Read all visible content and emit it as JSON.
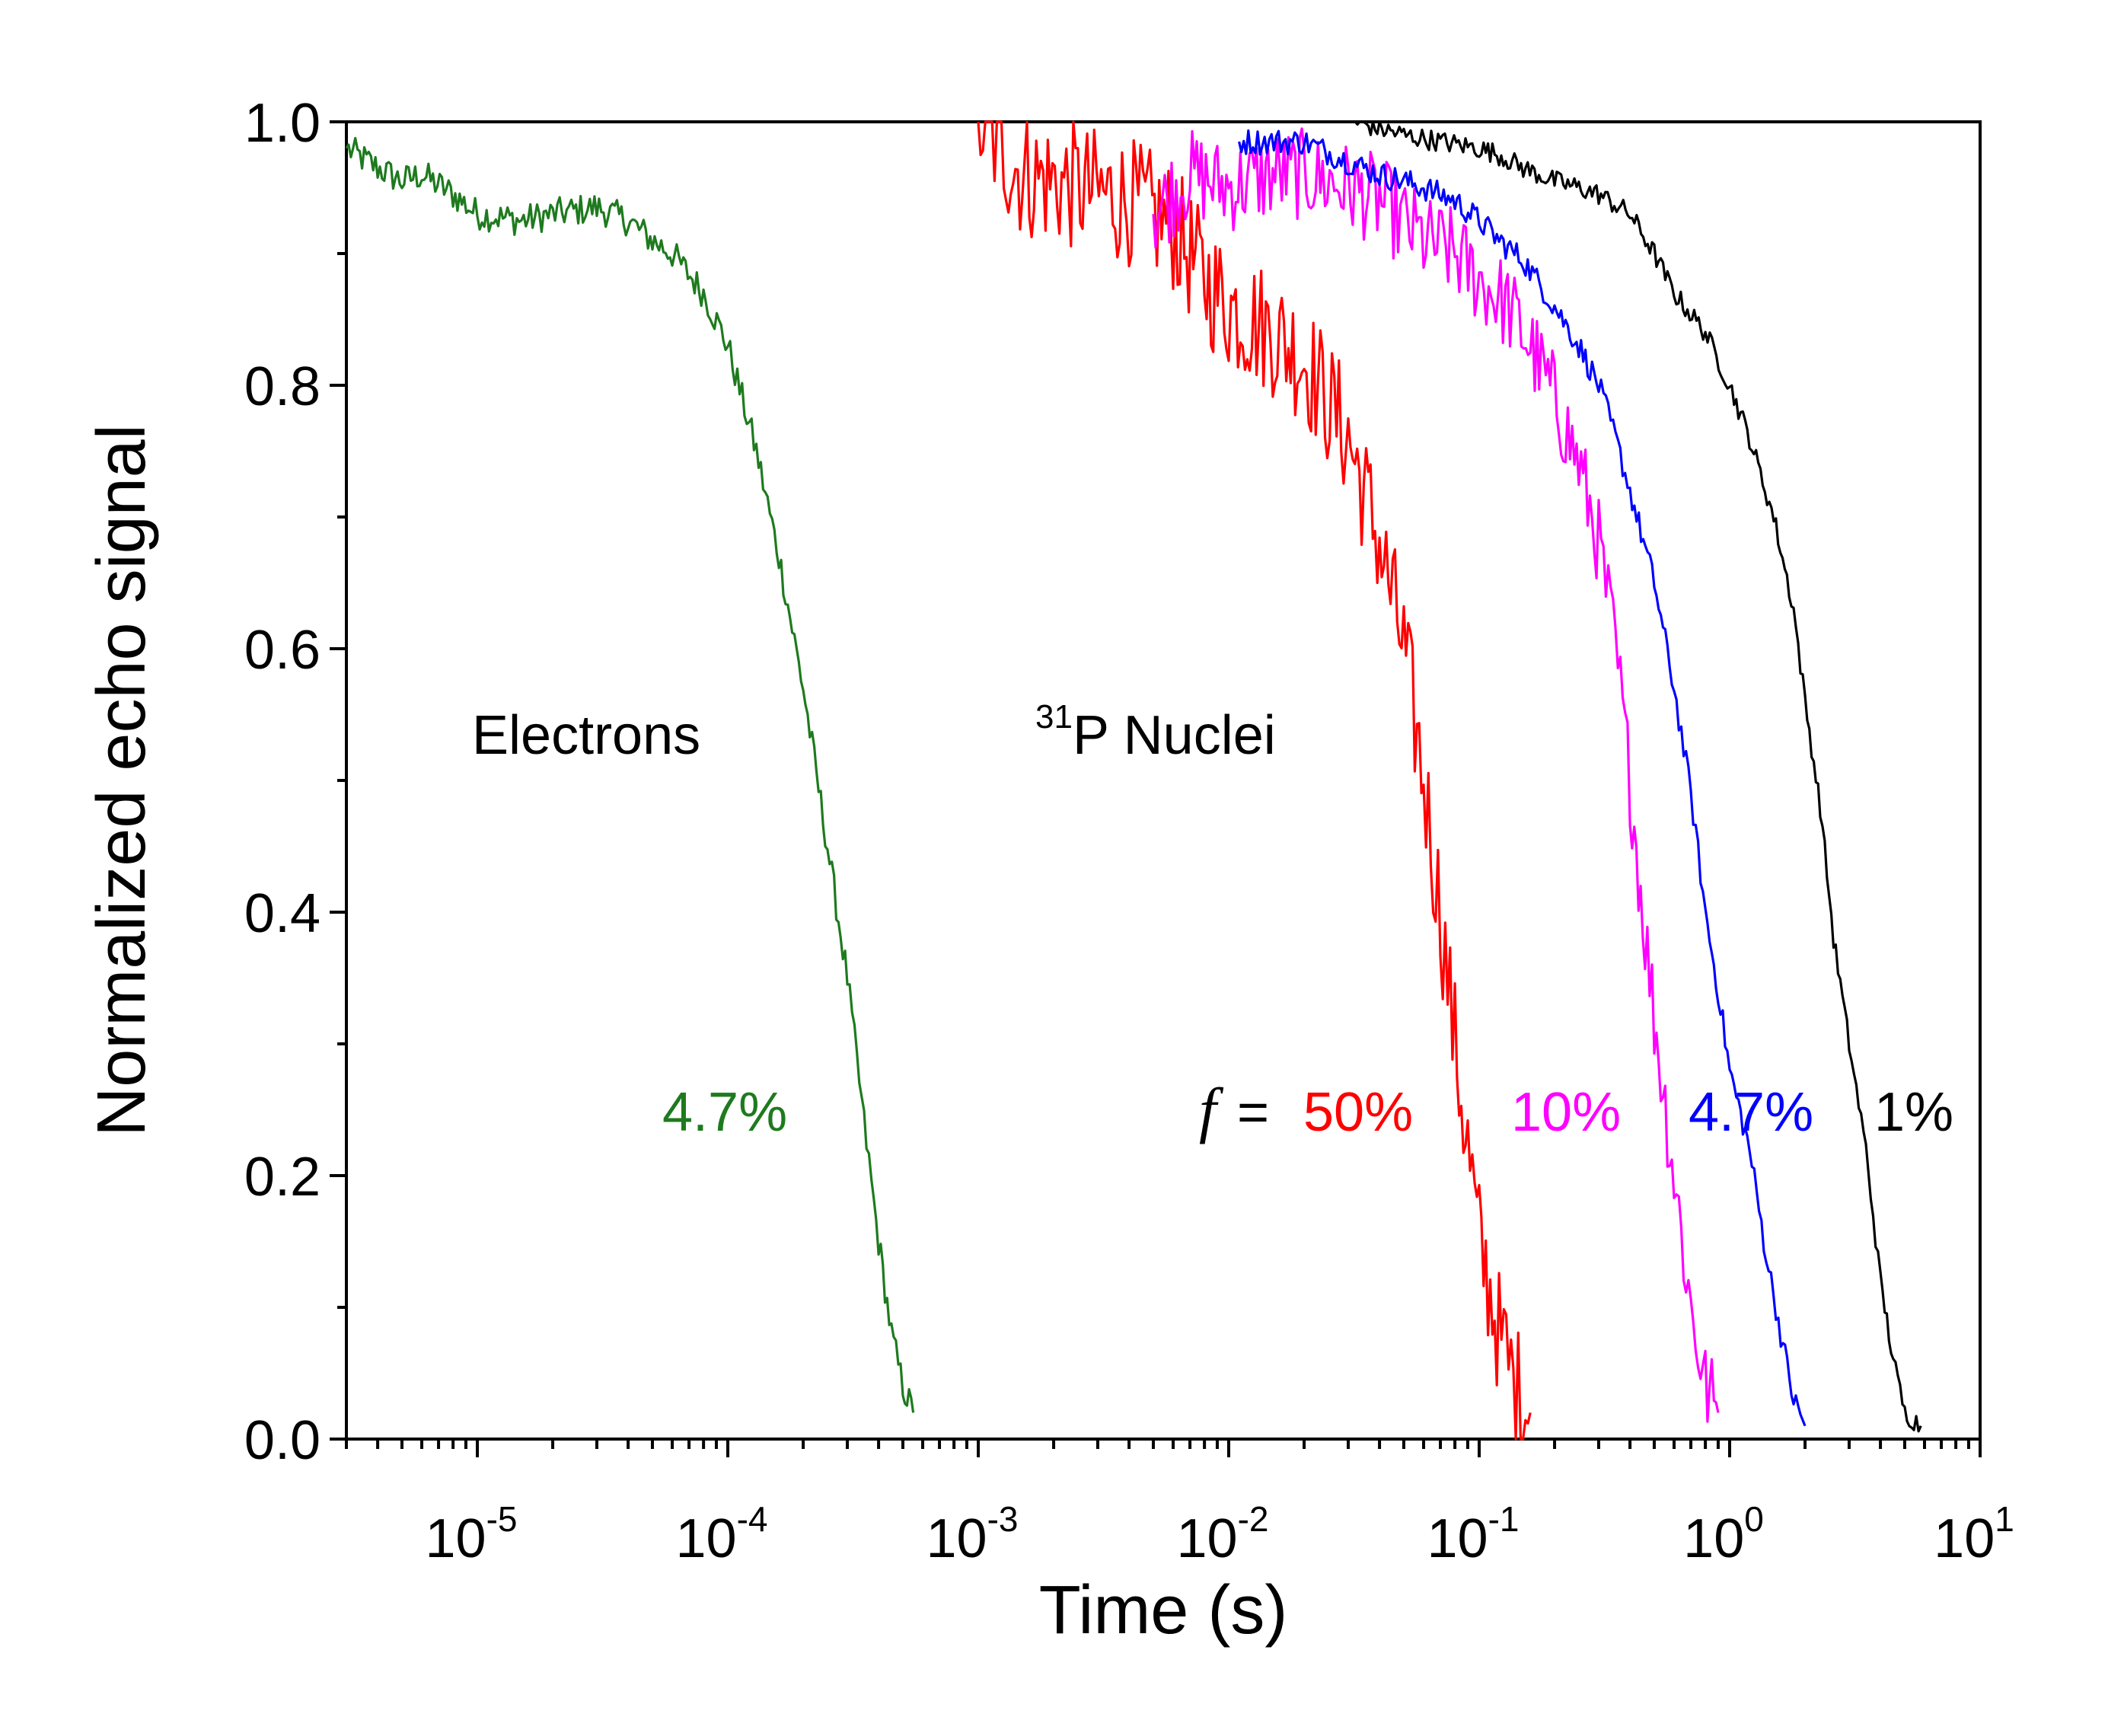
{
  "chart_data": {
    "type": "line",
    "xlabel": "Time (s)",
    "ylabel": "Normalized echo signal",
    "x_scale": "log",
    "xlim": [
      3e-06,
      10
    ],
    "ylim": [
      0.0,
      1.0
    ],
    "grid": false,
    "legend": "none",
    "x_ticks": [
      {
        "base": "10",
        "exp": "-5",
        "value": 1e-05
      },
      {
        "base": "10",
        "exp": "-4",
        "value": 0.0001
      },
      {
        "base": "10",
        "exp": "-3",
        "value": 0.001
      },
      {
        "base": "10",
        "exp": "-2",
        "value": 0.01
      },
      {
        "base": "10",
        "exp": "-1",
        "value": 0.1
      },
      {
        "base": "10",
        "exp": "0",
        "value": 1
      },
      {
        "base": "10",
        "exp": "1",
        "value": 10
      }
    ],
    "y_ticks": [
      "0.0",
      "0.2",
      "0.4",
      "0.6",
      "0.8",
      "1.0"
    ],
    "y_tick_values": [
      0,
      0.2,
      0.4,
      0.6,
      0.8,
      1.0
    ],
    "annotations": {
      "electrons": "Electrons",
      "nuclei_sup": "31",
      "nuclei": "P Nuclei",
      "f_symbol": "f",
      "equals": " =",
      "electron_pct": "4.7%"
    },
    "series": [
      {
        "label": "4.7%",
        "color": "#1e7a1e",
        "noise": 0.012,
        "points": [
          [
            3e-06,
            0.98
          ],
          [
            4e-06,
            0.965
          ],
          [
            5e-06,
            0.955
          ],
          [
            6e-06,
            0.96
          ],
          [
            8e-06,
            0.945
          ],
          [
            1e-05,
            0.93
          ],
          [
            1.5e-05,
            0.925
          ],
          [
            2e-05,
            0.93
          ],
          [
            3e-05,
            0.935
          ],
          [
            4e-05,
            0.925
          ],
          [
            5e-05,
            0.91
          ],
          [
            6e-05,
            0.9
          ],
          [
            8e-05,
            0.87
          ],
          [
            0.0001,
            0.83
          ],
          [
            0.00013,
            0.75
          ],
          [
            0.00016,
            0.67
          ],
          [
            0.0002,
            0.57
          ],
          [
            0.00025,
            0.45
          ],
          [
            0.0003,
            0.35
          ],
          [
            0.00035,
            0.24
          ],
          [
            0.0004,
            0.15
          ],
          [
            0.00045,
            0.08
          ],
          [
            0.0005,
            0.04
          ],
          [
            0.00055,
            0.02
          ]
        ]
      },
      {
        "label": "50%",
        "color": "#ff0000",
        "noise": 0.05,
        "points": [
          [
            0.001,
            1.0
          ],
          [
            0.0015,
            0.96
          ],
          [
            0.0025,
            0.95
          ],
          [
            0.004,
            0.94
          ],
          [
            0.006,
            0.92
          ],
          [
            0.008,
            0.88
          ],
          [
            0.01,
            0.86
          ],
          [
            0.015,
            0.84
          ],
          [
            0.02,
            0.82
          ],
          [
            0.03,
            0.76
          ],
          [
            0.04,
            0.68
          ],
          [
            0.05,
            0.6
          ],
          [
            0.06,
            0.5
          ],
          [
            0.07,
            0.4
          ],
          [
            0.08,
            0.3
          ],
          [
            0.09,
            0.22
          ],
          [
            0.1,
            0.15
          ],
          [
            0.12,
            0.08
          ],
          [
            0.14,
            0.04
          ],
          [
            0.16,
            0.02
          ]
        ]
      },
      {
        "label": "10%",
        "color": "#ff00ff",
        "noise": 0.035,
        "points": [
          [
            0.005,
            0.93
          ],
          [
            0.007,
            0.96
          ],
          [
            0.01,
            0.95
          ],
          [
            0.015,
            0.96
          ],
          [
            0.02,
            0.96
          ],
          [
            0.03,
            0.95
          ],
          [
            0.04,
            0.94
          ],
          [
            0.06,
            0.91
          ],
          [
            0.08,
            0.9
          ],
          [
            0.1,
            0.88
          ],
          [
            0.13,
            0.86
          ],
          [
            0.16,
            0.83
          ],
          [
            0.2,
            0.79
          ],
          [
            0.25,
            0.74
          ],
          [
            0.3,
            0.68
          ],
          [
            0.35,
            0.6
          ],
          [
            0.4,
            0.5
          ],
          [
            0.45,
            0.4
          ],
          [
            0.5,
            0.32
          ],
          [
            0.6,
            0.2
          ],
          [
            0.7,
            0.1
          ],
          [
            0.8,
            0.04
          ],
          [
            0.9,
            0.02
          ]
        ]
      },
      {
        "label": "4.7%",
        "color": "#0000ff",
        "noise": 0.01,
        "points": [
          [
            0.011,
            0.985
          ],
          [
            0.02,
            0.985
          ],
          [
            0.03,
            0.97
          ],
          [
            0.04,
            0.96
          ],
          [
            0.05,
            0.955
          ],
          [
            0.06,
            0.95
          ],
          [
            0.08,
            0.94
          ],
          [
            0.1,
            0.925
          ],
          [
            0.12,
            0.91
          ],
          [
            0.15,
            0.895
          ],
          [
            0.2,
            0.86
          ],
          [
            0.25,
            0.83
          ],
          [
            0.3,
            0.8
          ],
          [
            0.35,
            0.76
          ],
          [
            0.4,
            0.72
          ],
          [
            0.5,
            0.65
          ],
          [
            0.6,
            0.57
          ],
          [
            0.7,
            0.49
          ],
          [
            0.8,
            0.4
          ],
          [
            0.9,
            0.34
          ],
          [
            1.0,
            0.28
          ],
          [
            1.2,
            0.22
          ],
          [
            1.4,
            0.14
          ],
          [
            1.6,
            0.08
          ],
          [
            1.8,
            0.03
          ],
          [
            2.0,
            0.01
          ]
        ]
      },
      {
        "label": "1%",
        "color": "#000000",
        "noise": 0.008,
        "points": [
          [
            0.032,
            1.0
          ],
          [
            0.04,
            0.995
          ],
          [
            0.05,
            0.99
          ],
          [
            0.07,
            0.985
          ],
          [
            0.1,
            0.98
          ],
          [
            0.12,
            0.975
          ],
          [
            0.15,
            0.965
          ],
          [
            0.2,
            0.955
          ],
          [
            0.25,
            0.95
          ],
          [
            0.3,
            0.945
          ],
          [
            0.4,
            0.93
          ],
          [
            0.5,
            0.9
          ],
          [
            0.6,
            0.87
          ],
          [
            0.8,
            0.84
          ],
          [
            1.0,
            0.8
          ],
          [
            1.2,
            0.76
          ],
          [
            1.5,
            0.7
          ],
          [
            1.8,
            0.63
          ],
          [
            2.0,
            0.56
          ],
          [
            2.3,
            0.48
          ],
          [
            2.6,
            0.38
          ],
          [
            3.0,
            0.3
          ],
          [
            3.5,
            0.22
          ],
          [
            4.0,
            0.12
          ],
          [
            4.5,
            0.06
          ],
          [
            5.0,
            0.02
          ],
          [
            5.8,
            0.01
          ]
        ]
      }
    ]
  }
}
